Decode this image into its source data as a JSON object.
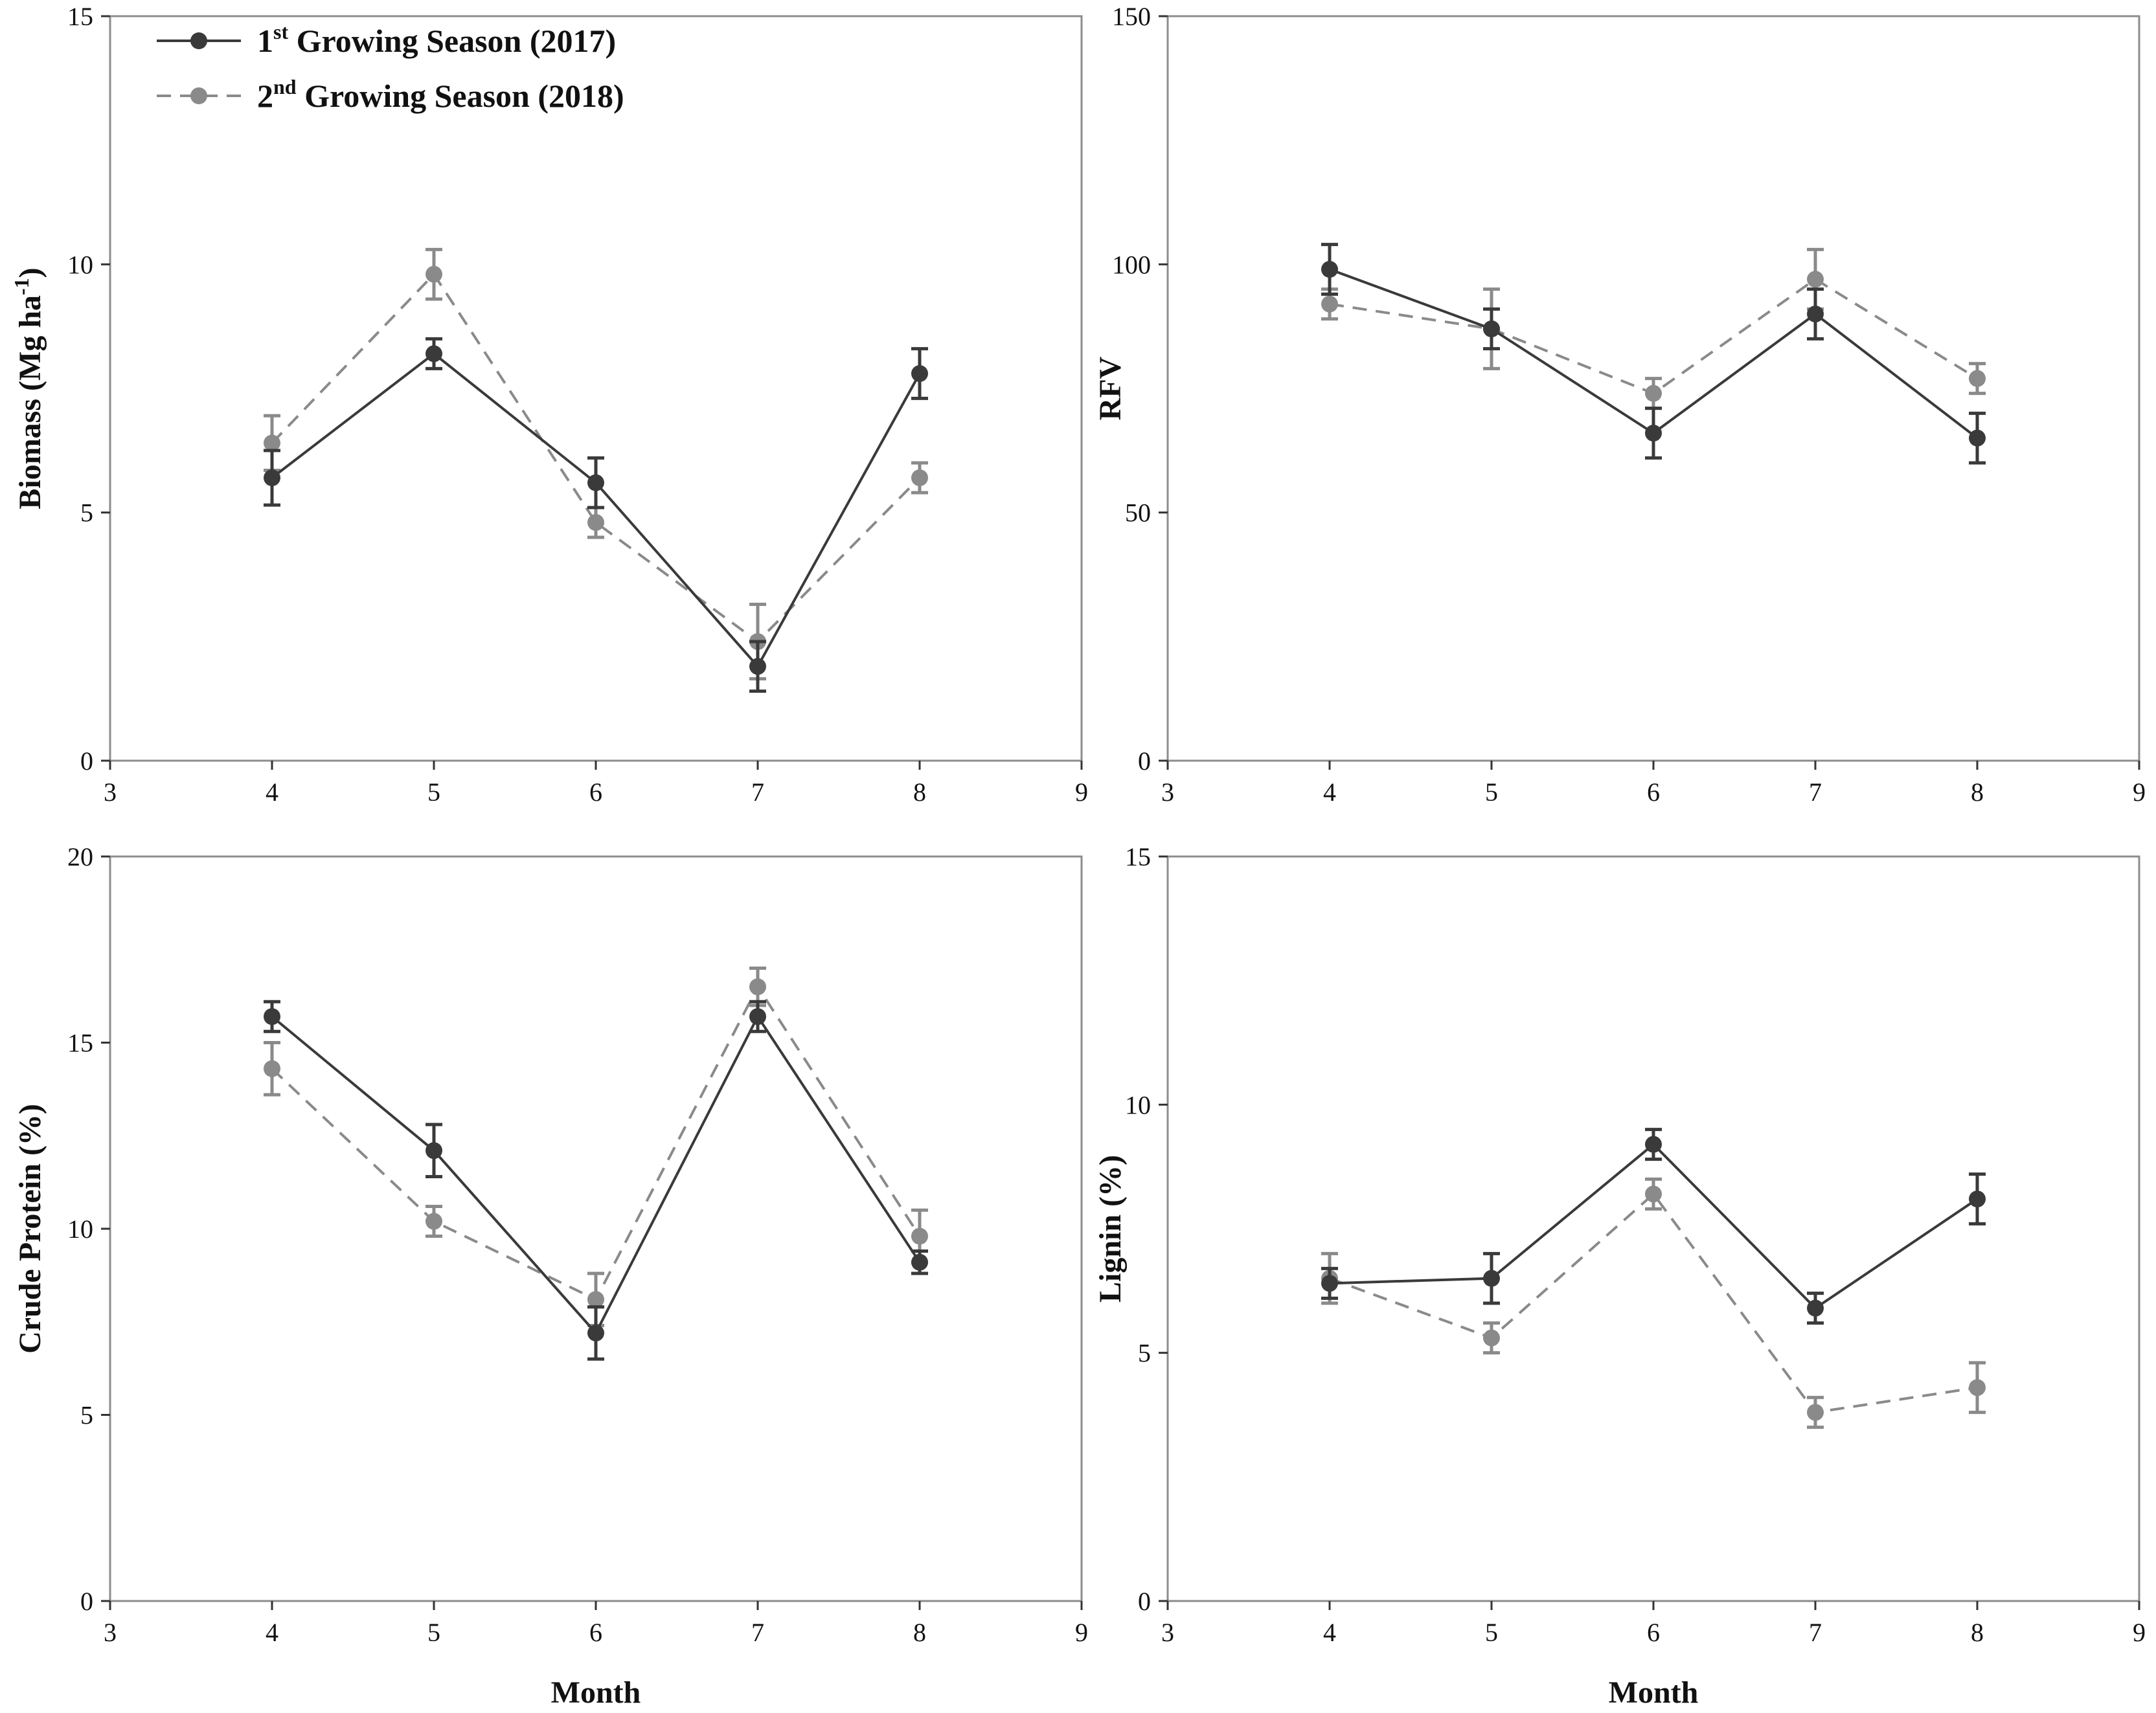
{
  "legend": [
    {
      "main": "1",
      "sup": "st",
      "rest": " Growing Season (2017)",
      "color": "#3a3a3a",
      "dash": false
    },
    {
      "main": "2",
      "sup": "nd",
      "rest": " Growing Season (2018)",
      "color": "#8a8a8a",
      "dash": true
    }
  ],
  "chart_data": [
    {
      "type": "line",
      "ylabel_main": "Biomass (Mg ha",
      "ylabel_sup": "-1",
      "ylabel_end": ")",
      "xlabel": "",
      "xlim": [
        3,
        9
      ],
      "ylim": [
        0,
        15
      ],
      "x_ticks": [
        3,
        4,
        5,
        6,
        7,
        8,
        9
      ],
      "y_ticks": [
        0,
        5,
        10,
        15
      ],
      "x": [
        4,
        5,
        6,
        7,
        8
      ],
      "series": [
        {
          "values": [
            5.7,
            8.2,
            5.6,
            1.9,
            7.8
          ],
          "errors": [
            0.55,
            0.3,
            0.5,
            0.5,
            0.5
          ]
        },
        {
          "values": [
            6.4,
            9.8,
            4.8,
            2.4,
            5.7
          ],
          "errors": [
            0.55,
            0.5,
            0.3,
            0.75,
            0.3
          ]
        }
      ]
    },
    {
      "type": "line",
      "ylabel_main": "RFV",
      "ylabel_sup": "",
      "ylabel_end": "",
      "xlabel": "",
      "xlim": [
        3,
        9
      ],
      "ylim": [
        0,
        150
      ],
      "x_ticks": [
        3,
        4,
        5,
        6,
        7,
        8,
        9
      ],
      "y_ticks": [
        0,
        50,
        100,
        150
      ],
      "x": [
        4,
        5,
        6,
        7,
        8
      ],
      "series": [
        {
          "values": [
            99,
            87,
            66,
            90,
            65
          ],
          "errors": [
            5,
            4,
            5,
            5,
            5
          ]
        },
        {
          "values": [
            92,
            87,
            74,
            97,
            77
          ],
          "errors": [
            3,
            8,
            3,
            6,
            3
          ]
        }
      ]
    },
    {
      "type": "line",
      "ylabel_main": "Crude Protein (%)",
      "ylabel_sup": "",
      "ylabel_end": "",
      "xlabel": "Month",
      "xlim": [
        3,
        9
      ],
      "ylim": [
        0,
        20
      ],
      "x_ticks": [
        3,
        4,
        5,
        6,
        7,
        8,
        9
      ],
      "y_ticks": [
        0,
        5,
        10,
        15,
        20
      ],
      "x": [
        4,
        5,
        6,
        7,
        8
      ],
      "series": [
        {
          "values": [
            15.7,
            12.1,
            7.2,
            15.7,
            9.1
          ],
          "errors": [
            0.4,
            0.7,
            0.7,
            0.4,
            0.3
          ]
        },
        {
          "values": [
            14.3,
            10.2,
            8.1,
            16.5,
            9.8
          ],
          "errors": [
            0.7,
            0.4,
            0.7,
            0.5,
            0.7
          ]
        }
      ]
    },
    {
      "type": "line",
      "ylabel_main": "Lignin (%)",
      "ylabel_sup": "",
      "ylabel_end": "",
      "xlabel": "Month",
      "xlim": [
        3,
        9
      ],
      "ylim": [
        0,
        15
      ],
      "x_ticks": [
        3,
        4,
        5,
        6,
        7,
        8,
        9
      ],
      "y_ticks": [
        0,
        5,
        10,
        15
      ],
      "x": [
        4,
        5,
        6,
        7,
        8
      ],
      "series": [
        {
          "values": [
            6.4,
            6.5,
            9.2,
            5.9,
            8.1
          ],
          "errors": [
            0.3,
            0.5,
            0.3,
            0.3,
            0.5
          ]
        },
        {
          "values": [
            6.5,
            5.3,
            8.2,
            3.8,
            4.3
          ],
          "errors": [
            0.5,
            0.3,
            0.3,
            0.3,
            0.5
          ]
        }
      ]
    }
  ]
}
